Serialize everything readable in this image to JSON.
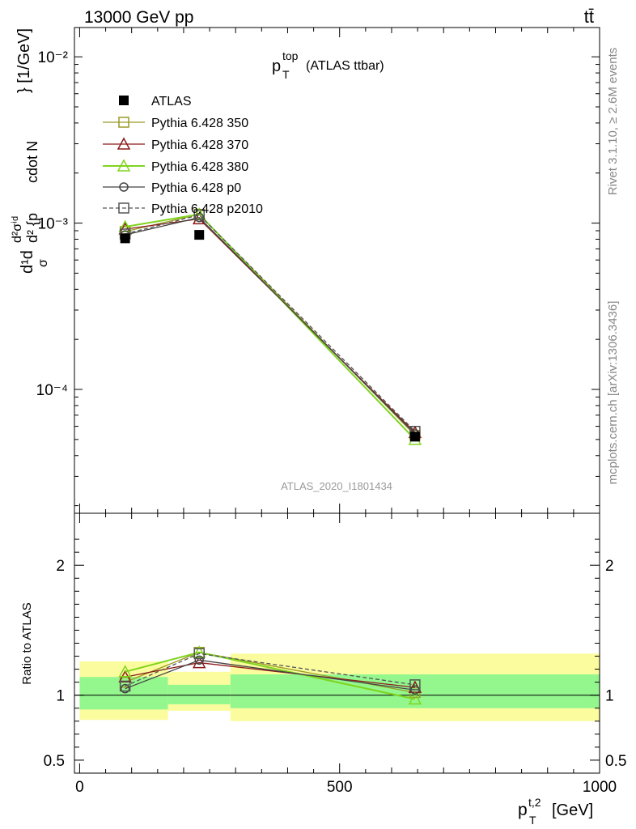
{
  "header": {
    "energy": "13000 GeV pp",
    "process": "tt̄"
  },
  "side": {
    "rivet": "Rivet 3.1.10, ≥ 2.6M events",
    "mcplots": "mcplots.cern.ch [arXiv:1306.3436]"
  },
  "chart_data": [
    {
      "type": "line",
      "title": "p_T^top (ATLAS ttbar)",
      "title_main": "p",
      "title_sup": "top",
      "title_sub": "T",
      "title_rest": "(ATLAS ttbar)",
      "analysis_label": "ATLAS_2020_I1801434",
      "ylabel": "d(1/σ)dσ / d²{p_T^{t,2} cdot N_jets} [1/GeV]",
      "ylabel_parts": {
        "top": "d²σⁱᵈ",
        "mid": "d",
        "left": "d¹d",
        "frac": "σ",
        "den": "d² {p",
        "den2": "cdot N",
        "unit": "} [1/GeV]"
      },
      "y_scale": "log",
      "ylim": [
        1.8e-05,
        0.015
      ],
      "xlim": [
        -10,
        1000
      ],
      "y_tick_labels": [
        "10⁻⁴",
        "10⁻³",
        "10⁻²"
      ],
      "x": [
        87.5,
        230,
        645
      ],
      "series": [
        {
          "name": "ATLAS",
          "values": [
            0.00081,
            0.00085,
            5.2e-05
          ],
          "color": "#000000",
          "marker": "filled-square"
        },
        {
          "name": "Pythia 6.428 350",
          "values": [
            0.00089,
            0.00113,
            5.3e-05
          ],
          "color": "#9a9a27",
          "marker": "open-square"
        },
        {
          "name": "Pythia 6.428 370",
          "values": [
            0.00092,
            0.00106,
            5.5e-05
          ],
          "color": "#8b1a1a",
          "marker": "open-triangle"
        },
        {
          "name": "Pythia 6.428 380",
          "values": [
            0.00095,
            0.00113,
            5e-05
          ],
          "color": "#7fd41f",
          "marker": "open-triangle"
        },
        {
          "name": "Pythia 6.428 p0",
          "values": [
            0.00085,
            0.00108,
            5.4e-05
          ],
          "color": "#444444",
          "marker": "open-circle"
        },
        {
          "name": "Pythia 6.428 p2010",
          "values": [
            0.00086,
            0.00112,
            5.6e-05
          ],
          "color": "#555555",
          "marker": "open-square",
          "dashed": true
        }
      ]
    },
    {
      "type": "line",
      "ylabel": "Ratio to ATLAS",
      "xlabel": "p_T^{t,2} [GeV]",
      "xlabel_main": "p",
      "xlabel_sup": "t,2",
      "xlabel_sub": "T",
      "xlabel_unit": "[GeV]",
      "ylim": [
        0.4,
        2.4
      ],
      "xlim": [
        -10,
        1000
      ],
      "y_ticks": [
        0.5,
        1,
        2
      ],
      "y_tick_labels": [
        "0.5",
        "1",
        "2"
      ],
      "x_ticks": [
        0,
        500,
        1000
      ],
      "x_tick_labels": [
        "0",
        "500",
        "1000"
      ],
      "bands": [
        {
          "x0": 0,
          "x1": 170,
          "inner": [
            0.89,
            1.14
          ],
          "outer": [
            0.81,
            1.26
          ]
        },
        {
          "x0": 170,
          "x1": 290,
          "inner": [
            0.93,
            1.08
          ],
          "outer": [
            0.88,
            1.18
          ]
        },
        {
          "x0": 290,
          "x1": 1000,
          "inner": [
            0.9,
            1.16
          ],
          "outer": [
            0.8,
            1.32
          ]
        }
      ],
      "x": [
        87.5,
        230,
        645
      ],
      "series": [
        {
          "name": "Pythia 6.428 350",
          "values": [
            1.1,
            1.33,
            1.02
          ],
          "color": "#9a9a27",
          "marker": "open-square"
        },
        {
          "name": "Pythia 6.428 370",
          "values": [
            1.14,
            1.25,
            1.06
          ],
          "color": "#8b1a1a",
          "marker": "open-triangle"
        },
        {
          "name": "Pythia 6.428 380",
          "values": [
            1.18,
            1.33,
            0.97
          ],
          "color": "#7fd41f",
          "marker": "open-triangle"
        },
        {
          "name": "Pythia 6.428 p0",
          "values": [
            1.05,
            1.27,
            1.04
          ],
          "color": "#444444",
          "marker": "open-circle"
        },
        {
          "name": "Pythia 6.428 p2010",
          "values": [
            1.07,
            1.32,
            1.08
          ],
          "color": "#555555",
          "marker": "open-square",
          "dashed": true
        }
      ]
    }
  ]
}
